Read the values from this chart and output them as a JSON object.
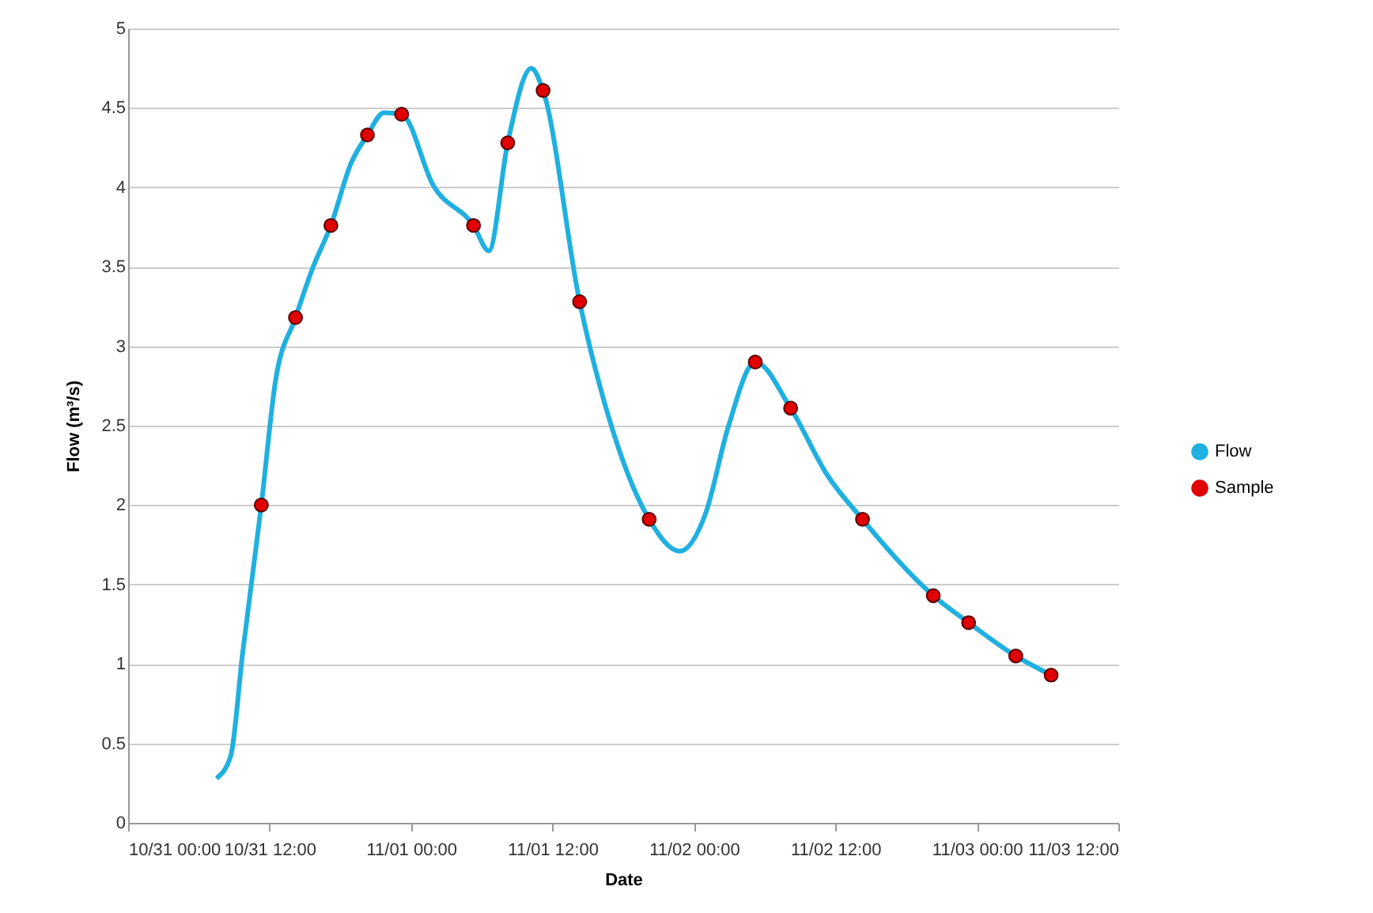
{
  "chart_data": {
    "type": "line",
    "xlabel": "Date",
    "ylabel": "Flow (m³/s)",
    "xlim": [
      "--10-31T00:00",
      "--11-03T12:00"
    ],
    "xticks": [
      {
        "value": "--10-31T00:00",
        "label": "10/31 00:00"
      },
      {
        "value": "--10-31T12:00",
        "label": "10/31 12:00"
      },
      {
        "value": "--11-01T00:00",
        "label": "11/01 00:00"
      },
      {
        "value": "--11-01T12:00",
        "label": "11/01 12:00"
      },
      {
        "value": "--11-02T00:00",
        "label": "11/02 00:00"
      },
      {
        "value": "--11-02T12:00",
        "label": "11/02 12:00"
      },
      {
        "value": "--11-03T00:00",
        "label": "11/03 00:00"
      },
      {
        "value": "--11-03T12:00",
        "label": "11/03 12:00"
      }
    ],
    "ylim": [
      0,
      5
    ],
    "yticks": [
      0,
      0.5,
      1,
      1.5,
      2,
      2.5,
      3,
      3.5,
      4,
      4.5,
      5
    ],
    "grid": "y",
    "legend": "right",
    "series": [
      {
        "name": "Flow",
        "type": "line",
        "marker": "none",
        "color": "#1fb0e0",
        "x": [
          "--10-31T07:30",
          "--10-31T08:42",
          "--10-31T09:42",
          "--10-31T11:18",
          "--10-31T12:30",
          "--10-31T14:12",
          "--10-31T15:42",
          "--10-31T17:12",
          "--10-31T18:54",
          "--10-31T20:18",
          "--10-31T21:42",
          "--10-31T23:12",
          "--11-01T01:54",
          "--11-01T05:18",
          "--11-01T06:36",
          "--11-01T08:12",
          "--11-01T10:12",
          "--11-01T11:12",
          "--11-01T14:18",
          "--11-01T16:42",
          "--11-01T20:12",
          "--11-01T22:48",
          "--11-02T01:00",
          "--11-02T02:54",
          "--11-02T05:12",
          "--11-02T08:12",
          "--11-02T11:18",
          "--11-02T14:18",
          "--11-02T20:18",
          "--11-02T23:18",
          "--11-03T03:18",
          "--11-03T06:18"
        ],
        "values": [
          0.28,
          0.42,
          1.06,
          2.0,
          2.78,
          3.18,
          3.5,
          3.76,
          4.15,
          4.33,
          4.47,
          4.46,
          4.01,
          3.76,
          3.6,
          4.28,
          4.75,
          4.61,
          3.28,
          2.57,
          1.91,
          1.71,
          1.95,
          2.49,
          2.9,
          2.61,
          2.19,
          1.91,
          1.43,
          1.26,
          1.05,
          0.93
        ]
      },
      {
        "name": "Sample",
        "type": "scatter",
        "marker": "circle",
        "color": "#e00000",
        "x": [
          "--10-31T11:18",
          "--10-31T14:12",
          "--10-31T17:12",
          "--10-31T20:18",
          "--10-31T23:12",
          "--11-01T05:18",
          "--11-01T08:12",
          "--11-01T11:12",
          "--11-01T14:18",
          "--11-01T20:12",
          "--11-02T05:12",
          "--11-02T08:12",
          "--11-02T14:18",
          "--11-02T20:18",
          "--11-02T23:18",
          "--11-03T03:18",
          "--11-03T06:18"
        ],
        "values": [
          2.0,
          3.18,
          3.76,
          4.33,
          4.46,
          3.76,
          4.28,
          4.61,
          3.28,
          1.91,
          2.9,
          2.61,
          1.91,
          1.43,
          1.26,
          1.05,
          0.93
        ]
      }
    ]
  }
}
